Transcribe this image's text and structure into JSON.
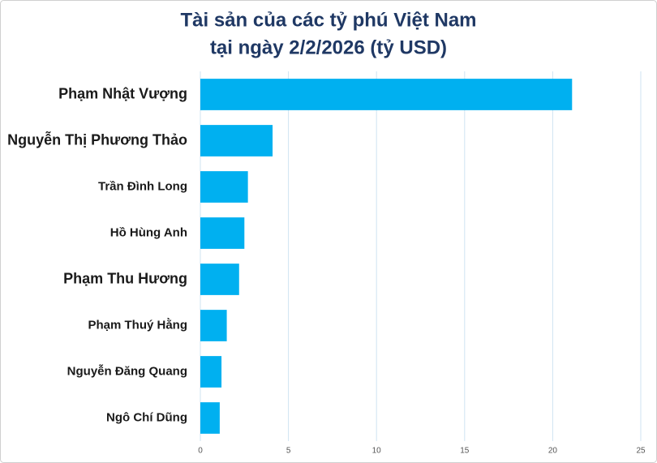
{
  "chart_data": {
    "type": "bar",
    "orientation": "horizontal",
    "title": [
      "Tài sản của các tỷ phú Việt Nam",
      "tại ngày 2/2/2026 (tỷ USD)"
    ],
    "categories": [
      "Phạm Nhật Vượng",
      "Nguyễn Thị Phương Thảo",
      "Trần Đình Long",
      "Hồ Hùng Anh",
      "Phạm Thu Hương",
      "Phạm Thuý Hằng",
      "Nguyễn Đăng Quang",
      "Ngô Chí Dũng"
    ],
    "values": [
      21.1,
      4.1,
      2.7,
      2.5,
      2.2,
      1.5,
      1.2,
      1.1
    ],
    "color": "#00b0f0",
    "xlim": [
      0,
      25
    ],
    "xticks": [
      0,
      5,
      10,
      15,
      20,
      25
    ],
    "grid": true
  }
}
